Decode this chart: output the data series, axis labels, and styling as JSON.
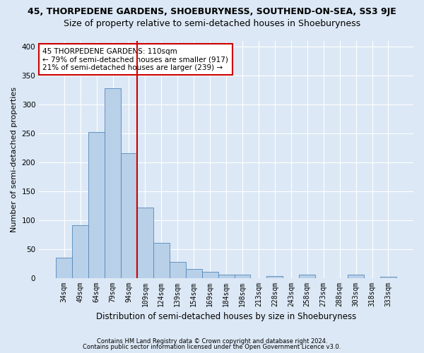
{
  "title": "45, THORPEDENE GARDENS, SHOEBURYNESS, SOUTHEND-ON-SEA, SS3 9JE",
  "subtitle": "Size of property relative to semi-detached houses in Shoeburyness",
  "xlabel": "Distribution of semi-detached houses by size in Shoeburyness",
  "ylabel": "Number of semi-detached properties",
  "annotation_title": "45 THORPEDENE GARDENS: 110sqm",
  "annotation_line1": "← 79% of semi-detached houses are smaller (917)",
  "annotation_line2": "21% of semi-detached houses are larger (239) →",
  "footer1": "Contains HM Land Registry data © Crown copyright and database right 2024.",
  "footer2": "Contains public sector information licensed under the Open Government Licence v3.0.",
  "categories": [
    "34sqm",
    "49sqm",
    "64sqm",
    "79sqm",
    "94sqm",
    "109sqm",
    "124sqm",
    "139sqm",
    "154sqm",
    "169sqm",
    "184sqm",
    "198sqm",
    "213sqm",
    "228sqm",
    "243sqm",
    "258sqm",
    "273sqm",
    "288sqm",
    "303sqm",
    "318sqm",
    "333sqm"
  ],
  "values": [
    35,
    91,
    252,
    328,
    215,
    122,
    61,
    27,
    15,
    11,
    5,
    5,
    0,
    3,
    0,
    5,
    0,
    0,
    5,
    0,
    2
  ],
  "bar_color": "#b8d0e8",
  "bar_edge_color": "#5588bb",
  "vline_color": "#cc0000",
  "ylim": [
    0,
    410
  ],
  "yticks": [
    0,
    50,
    100,
    150,
    200,
    250,
    300,
    350,
    400
  ],
  "bg_color": "#dce8f5",
  "plot_bg_color": "#dce8f5",
  "grid_color": "#ffffff",
  "annotation_box_color": "#ffffff",
  "annotation_box_edge": "#cc0000",
  "title_fontsize": 9,
  "subtitle_fontsize": 9,
  "tick_fontsize": 7,
  "ylabel_fontsize": 8,
  "xlabel_fontsize": 8.5,
  "annotation_fontsize": 7.5,
  "footer_fontsize": 6
}
